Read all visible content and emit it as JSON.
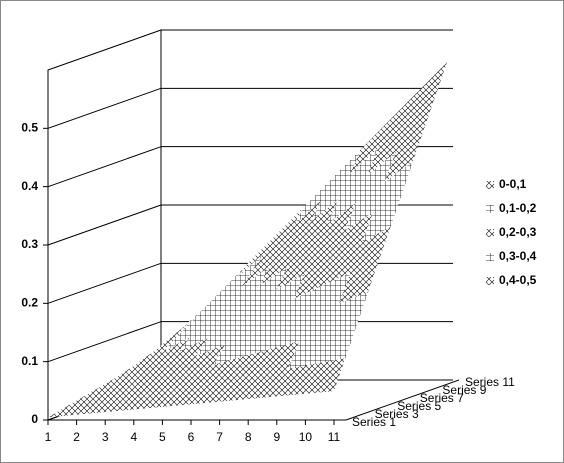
{
  "chart_data": {
    "type": "surface",
    "categories": [
      "1",
      "2",
      "3",
      "4",
      "5",
      "6",
      "7",
      "8",
      "9",
      "10",
      "11"
    ],
    "depth_categories": [
      "Series 1",
      null,
      "Series 3",
      null,
      "Series 5",
      null,
      "Series 7",
      null,
      "Series 9",
      null,
      "Series 11"
    ],
    "values": [
      [
        0.0045,
        0.009,
        0.0135,
        0.018,
        0.0225,
        0.027,
        0.0315,
        0.036,
        0.0405,
        0.045,
        0.0495
      ],
      [
        0.009,
        0.018,
        0.027,
        0.036,
        0.045,
        0.054,
        0.063,
        0.072,
        0.081,
        0.09,
        0.099
      ],
      [
        0.0135,
        0.027,
        0.0405,
        0.054,
        0.0675,
        0.081,
        0.0945,
        0.108,
        0.1215,
        0.135,
        0.1485
      ],
      [
        0.018,
        0.036,
        0.054,
        0.072,
        0.09,
        0.108,
        0.126,
        0.144,
        0.162,
        0.18,
        0.198
      ],
      [
        0.0225,
        0.045,
        0.0675,
        0.09,
        0.1125,
        0.135,
        0.1575,
        0.18,
        0.2025,
        0.225,
        0.2475
      ],
      [
        0.027,
        0.054,
        0.081,
        0.108,
        0.135,
        0.162,
        0.189,
        0.216,
        0.243,
        0.27,
        0.297
      ],
      [
        0.0315,
        0.063,
        0.0945,
        0.126,
        0.1575,
        0.189,
        0.2205,
        0.252,
        0.2835,
        0.315,
        0.3465
      ],
      [
        0.036,
        0.072,
        0.108,
        0.144,
        0.18,
        0.216,
        0.252,
        0.288,
        0.324,
        0.36,
        0.396
      ],
      [
        0.0405,
        0.081,
        0.1215,
        0.162,
        0.2025,
        0.243,
        0.2835,
        0.324,
        0.3645,
        0.405,
        0.4455
      ],
      [
        0.045,
        0.09,
        0.135,
        0.18,
        0.225,
        0.27,
        0.315,
        0.36,
        0.405,
        0.45,
        0.495
      ],
      [
        0.0495,
        0.099,
        0.1485,
        0.198,
        0.2475,
        0.297,
        0.3465,
        0.396,
        0.4455,
        0.495,
        0.5445
      ]
    ],
    "ylim": [
      0,
      0.6
    ],
    "yticks": [
      0,
      0.1,
      0.2,
      0.3,
      0.4,
      0.5
    ],
    "grid": true,
    "legend_labels": [
      "0-0,1",
      "0,1-0,2",
      "0,2-0,3",
      "0,3-0,4",
      "0,4-0,5"
    ],
    "legend_position": "right"
  }
}
